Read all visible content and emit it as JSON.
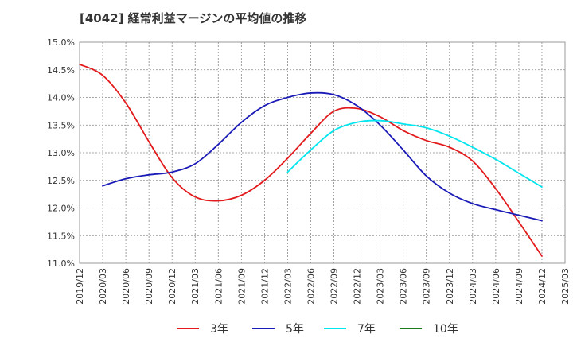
{
  "chart_data": {
    "type": "line",
    "title": "[4042]  経常利益マージンの平均値の推移",
    "xlabel": "",
    "ylabel": "",
    "ylim": [
      11.0,
      15.0
    ],
    "y_ticks": [
      "15.0%",
      "14.5%",
      "14.0%",
      "13.5%",
      "13.0%",
      "12.5%",
      "12.0%",
      "11.5%",
      "11.0%"
    ],
    "y_tick_values": [
      15.0,
      14.5,
      14.0,
      13.5,
      13.0,
      12.5,
      12.0,
      11.5,
      11.0
    ],
    "x_ticks": [
      "2019/12",
      "2020/03",
      "2020/06",
      "2020/09",
      "2020/12",
      "2021/03",
      "2021/06",
      "2021/09",
      "2021/12",
      "2022/03",
      "2022/06",
      "2022/09",
      "2022/12",
      "2023/03",
      "2023/06",
      "2023/09",
      "2023/12",
      "2024/03",
      "2024/06",
      "2024/09",
      "2024/12",
      "2025/03"
    ],
    "grid": true,
    "legend_position": "bottom",
    "series": [
      {
        "name": "3年",
        "color": "#e31a1c",
        "x": [
          "2019/12",
          "2020/03",
          "2020/06",
          "2020/09",
          "2020/12",
          "2021/03",
          "2021/06",
          "2021/09",
          "2021/12",
          "2022/03",
          "2022/06",
          "2022/09",
          "2022/12",
          "2023/03",
          "2023/06",
          "2023/09",
          "2023/12",
          "2024/03",
          "2024/06",
          "2024/09",
          "2024/12"
        ],
        "values": [
          14.6,
          14.4,
          13.9,
          13.2,
          12.55,
          12.2,
          12.13,
          12.23,
          12.5,
          12.9,
          13.35,
          13.75,
          13.8,
          13.65,
          13.4,
          13.22,
          13.1,
          12.85,
          12.35,
          11.75,
          11.13
        ]
      },
      {
        "name": "5年",
        "color": "#1a1ab8",
        "x": [
          "2020/03",
          "2020/06",
          "2020/09",
          "2020/12",
          "2021/03",
          "2021/06",
          "2021/09",
          "2021/12",
          "2022/03",
          "2022/06",
          "2022/09",
          "2022/12",
          "2023/03",
          "2023/06",
          "2023/09",
          "2023/12",
          "2024/03",
          "2024/06",
          "2024/09",
          "2024/12"
        ],
        "values": [
          12.4,
          12.53,
          12.6,
          12.65,
          12.8,
          13.15,
          13.55,
          13.85,
          14.0,
          14.08,
          14.05,
          13.85,
          13.5,
          13.05,
          12.58,
          12.27,
          12.08,
          11.97,
          11.87,
          11.77
        ]
      },
      {
        "name": "7年",
        "color": "#00e5ee",
        "x": [
          "2022/03",
          "2022/06",
          "2022/09",
          "2022/12",
          "2023/03",
          "2023/06",
          "2023/09",
          "2023/12",
          "2024/03",
          "2024/06",
          "2024/09",
          "2024/12"
        ],
        "values": [
          12.65,
          13.05,
          13.4,
          13.55,
          13.58,
          13.52,
          13.45,
          13.3,
          13.1,
          12.88,
          12.63,
          12.38
        ]
      },
      {
        "name": "10年",
        "color": "#1a7a1a",
        "x": [],
        "values": []
      }
    ]
  }
}
